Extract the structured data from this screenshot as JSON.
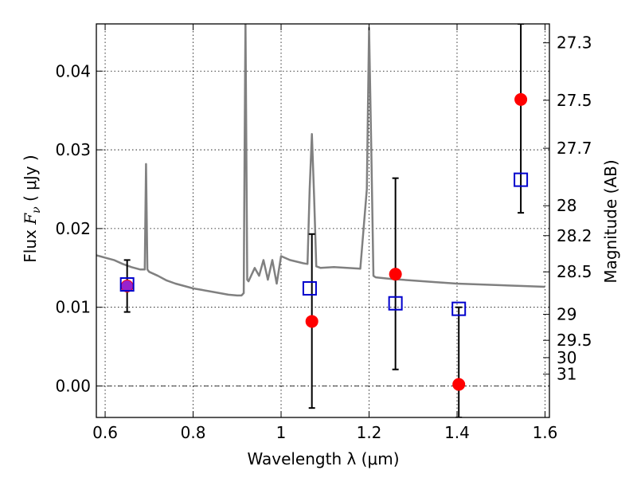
{
  "chart_data": {
    "type": "scatter",
    "title": "",
    "xlabel": "Wavelength  λ (μm)",
    "ylabel_prefix": "Flux  ",
    "ylabel_symbol": "F",
    "ylabel_sub": "ν",
    "ylabel_suffix": "  ( μJy )",
    "ylabel_right": "Magnitude (AB)",
    "xlim": [
      0.58,
      1.61
    ],
    "ylim": [
      -0.004,
      0.046
    ],
    "grid": true,
    "x_ticks": [
      0.6,
      0.8,
      1.0,
      1.2,
      1.4,
      1.6
    ],
    "x_tick_labels": [
      "0.6",
      "0.8",
      "1",
      "1.2",
      "1.4",
      "1.6"
    ],
    "y_ticks": [
      0.0,
      0.01,
      0.02,
      0.03,
      0.04
    ],
    "y_tick_labels": [
      "0.00",
      "0.01",
      "0.02",
      "0.03",
      "0.04"
    ],
    "right_ticks": [
      {
        "label": "27.3",
        "flux": 0.0436
      },
      {
        "label": "27.5",
        "flux": 0.0363
      },
      {
        "label": "27.7",
        "flux": 0.0302
      },
      {
        "label": "28",
        "flux": 0.0229
      },
      {
        "label": "28.2",
        "flux": 0.0191
      },
      {
        "label": "28.5",
        "flux": 0.0145
      },
      {
        "label": "29",
        "flux": 0.0091
      },
      {
        "label": "29.5",
        "flux": 0.0058
      },
      {
        "label": "30",
        "flux": 0.0036
      },
      {
        "label": "31",
        "flux": 0.0015
      }
    ],
    "model_spectrum": {
      "color": "#808080",
      "x": [
        0.58,
        0.6,
        0.62,
        0.64,
        0.66,
        0.68,
        0.69,
        0.693,
        0.696,
        0.7,
        0.72,
        0.74,
        0.76,
        0.78,
        0.8,
        0.82,
        0.84,
        0.86,
        0.88,
        0.9,
        0.91,
        0.915,
        0.917,
        0.919,
        0.921,
        0.923,
        0.926,
        0.94,
        0.95,
        0.96,
        0.97,
        0.98,
        0.99,
        1.0,
        1.02,
        1.05,
        1.06,
        1.065,
        1.07,
        1.075,
        1.08,
        1.09,
        1.12,
        1.15,
        1.18,
        1.195,
        1.2,
        1.205,
        1.21,
        1.215,
        1.25,
        1.3,
        1.35,
        1.4,
        1.45,
        1.5,
        1.55,
        1.6
      ],
      "y": [
        0.0166,
        0.0163,
        0.016,
        0.0155,
        0.0151,
        0.0148,
        0.0148,
        0.0282,
        0.0148,
        0.0145,
        0.014,
        0.0134,
        0.013,
        0.0127,
        0.0124,
        0.0122,
        0.012,
        0.0118,
        0.0116,
        0.0115,
        0.0115,
        0.0118,
        0.03,
        0.0465,
        0.03,
        0.0135,
        0.0133,
        0.015,
        0.014,
        0.016,
        0.0135,
        0.016,
        0.013,
        0.0165,
        0.016,
        0.0156,
        0.0155,
        0.025,
        0.032,
        0.024,
        0.0152,
        0.015,
        0.0151,
        0.015,
        0.0149,
        0.025,
        0.0455,
        0.03,
        0.014,
        0.0138,
        0.0136,
        0.0134,
        0.0132,
        0.013,
        0.0129,
        0.0128,
        0.0127,
        0.0126
      ]
    },
    "error_bars": [
      {
        "x": 0.65,
        "low": 0.0094,
        "high": 0.016
      },
      {
        "x": 1.07,
        "low": -0.0028,
        "high": 0.0193
      },
      {
        "x": 1.26,
        "low": 0.0021,
        "high": 0.0264
      },
      {
        "x": 1.404,
        "low": -0.004,
        "high": 0.01
      },
      {
        "x": 1.545,
        "low": 0.022,
        "high": 0.046
      }
    ],
    "observed_points": {
      "color": "#ff0000",
      "x": [
        0.65,
        1.07,
        1.26,
        1.404,
        1.545
      ],
      "y": [
        0.0127,
        0.0082,
        0.0142,
        0.0002,
        0.0364
      ]
    },
    "model_points": {
      "color": "#0000cc",
      "x": [
        0.65,
        1.065,
        1.26,
        1.404,
        1.545
      ],
      "y": [
        0.0129,
        0.0124,
        0.0105,
        0.0098,
        0.0262
      ]
    },
    "overlap_marker": {
      "x": 0.65,
      "y": 0.0127,
      "color": "#9922cc"
    }
  }
}
